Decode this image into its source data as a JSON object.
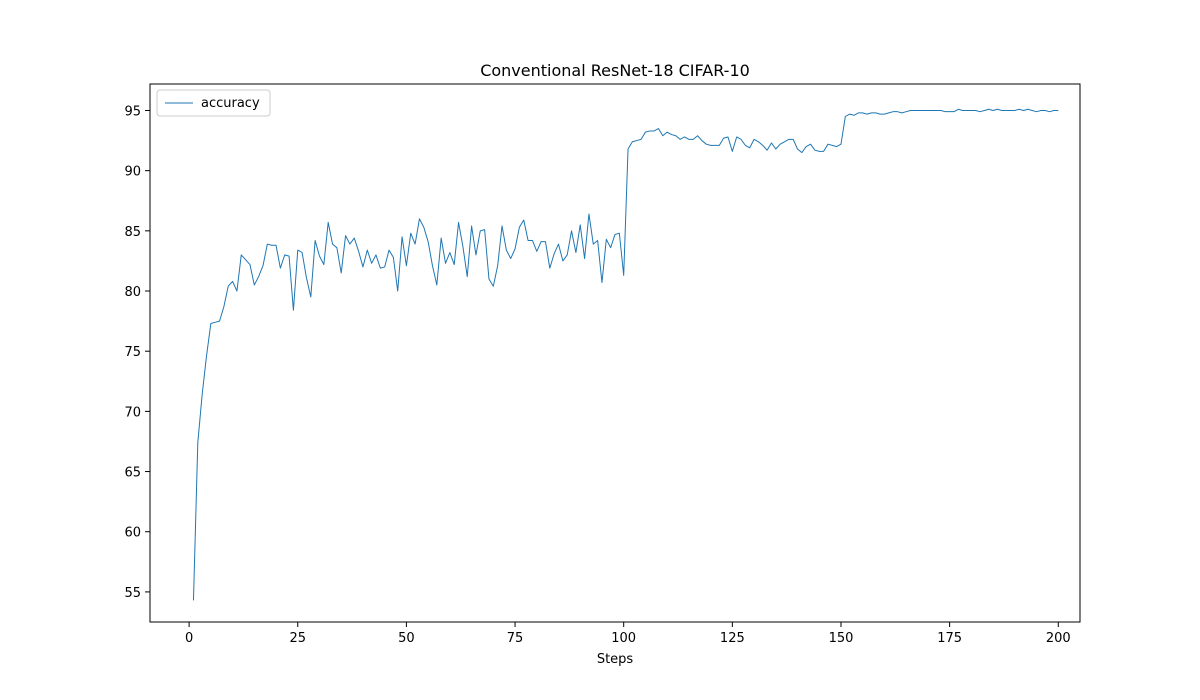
{
  "chart_data": {
    "type": "line",
    "title": "Conventional ResNet-18 CIFAR-10",
    "xlabel": "Steps",
    "ylabel": "",
    "xlim": [
      -9,
      205
    ],
    "ylim": [
      52.5,
      97.2
    ],
    "xticks": [
      0,
      25,
      50,
      75,
      100,
      125,
      150,
      175,
      200
    ],
    "yticks": [
      55,
      60,
      65,
      70,
      75,
      80,
      85,
      90,
      95
    ],
    "grid": false,
    "legend_position": "top-left",
    "series": [
      {
        "name": "accuracy",
        "color": "#1f77b4",
        "x_start": 1,
        "x_step": 1,
        "values": [
          54.3,
          67.4,
          71.4,
          74.6,
          77.3,
          77.4,
          77.5,
          78.7,
          80.4,
          80.8,
          80.0,
          83.0,
          82.6,
          82.2,
          80.5,
          81.2,
          82.1,
          83.9,
          83.8,
          83.8,
          81.9,
          83.0,
          82.9,
          78.4,
          83.4,
          83.2,
          81.1,
          79.5,
          84.2,
          82.9,
          82.2,
          85.7,
          83.9,
          83.6,
          81.5,
          84.6,
          83.9,
          84.4,
          83.3,
          82.0,
          83.4,
          82.3,
          83.0,
          81.9,
          82.0,
          83.4,
          82.8,
          80.0,
          84.5,
          82.1,
          84.8,
          83.9,
          86.0,
          85.3,
          84.1,
          82.1,
          80.5,
          84.4,
          82.3,
          83.2,
          82.2,
          85.7,
          83.7,
          81.2,
          85.4,
          83.0,
          85.0,
          85.1,
          81.0,
          80.4,
          82.1,
          85.4,
          83.4,
          82.7,
          83.5,
          85.3,
          85.9,
          84.2,
          84.2,
          83.3,
          84.1,
          84.1,
          81.9,
          83.1,
          83.9,
          82.5,
          83.0,
          85.0,
          83.2,
          85.5,
          82.7,
          86.4,
          83.9,
          84.2,
          80.7,
          84.3,
          83.6,
          84.7,
          84.8,
          81.3,
          91.8,
          92.4,
          92.5,
          92.6,
          93.2,
          93.3,
          93.3,
          93.5,
          92.9,
          93.2,
          93.0,
          92.9,
          92.6,
          92.8,
          92.6,
          92.6,
          92.9,
          92.5,
          92.2,
          92.1,
          92.1,
          92.1,
          92.7,
          92.8,
          91.6,
          92.8,
          92.6,
          92.1,
          91.9,
          92.6,
          92.4,
          92.1,
          91.7,
          92.3,
          91.8,
          92.2,
          92.4,
          92.6,
          92.6,
          91.8,
          91.5,
          92.0,
          92.2,
          91.7,
          91.6,
          91.6,
          92.2,
          92.1,
          92.0,
          92.2,
          94.5,
          94.7,
          94.6,
          94.8,
          94.8,
          94.7,
          94.8,
          94.8,
          94.7,
          94.7,
          94.8,
          94.9,
          94.9,
          94.8,
          94.9,
          95.0,
          95.0,
          95.0,
          95.0,
          95.0,
          95.0,
          95.0,
          95.0,
          94.9,
          94.9,
          94.9,
          95.1,
          95.0,
          95.0,
          95.0,
          95.0,
          94.9,
          95.0,
          95.1,
          95.0,
          95.1,
          95.0,
          95.0,
          95.0,
          95.0,
          95.1,
          95.0,
          95.1,
          95.0,
          94.9,
          95.0,
          95.0,
          94.9,
          95.0,
          95.0
        ]
      }
    ]
  }
}
